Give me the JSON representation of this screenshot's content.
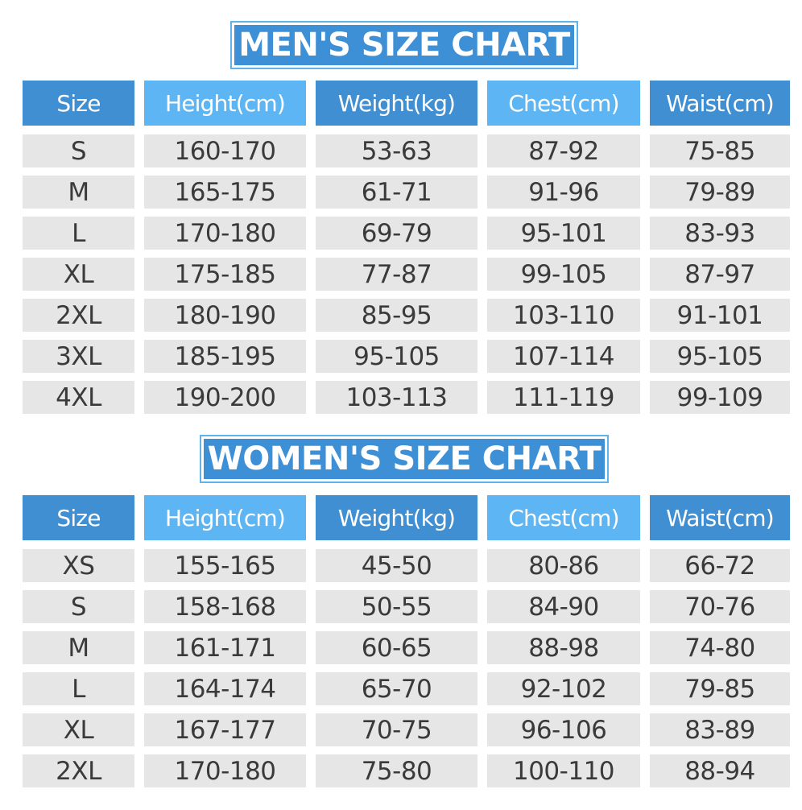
{
  "colors": {
    "header_dark": "#3f8fd2",
    "header_light": "#5db6f3",
    "cell_bg": "#e6e6e6",
    "text": "#3a3a3a",
    "banner_bg": "#3d8fd6"
  },
  "men": {
    "title": "MEN'S SIZE CHART",
    "headers": [
      "Size",
      "Height(cm)",
      "Weight(kg)",
      "Chest(cm)",
      "Waist(cm)"
    ],
    "rows": [
      [
        "S",
        "160-170",
        "53-63",
        "87-92",
        "75-85"
      ],
      [
        "M",
        "165-175",
        "61-71",
        "91-96",
        "79-89"
      ],
      [
        "L",
        "170-180",
        "69-79",
        "95-101",
        "83-93"
      ],
      [
        "XL",
        "175-185",
        "77-87",
        "99-105",
        "87-97"
      ],
      [
        "2XL",
        "180-190",
        "85-95",
        "103-110",
        "91-101"
      ],
      [
        "3XL",
        "185-195",
        "95-105",
        "107-114",
        "95-105"
      ],
      [
        "4XL",
        "190-200",
        "103-113",
        "111-119",
        "99-109"
      ]
    ]
  },
  "women": {
    "title": "WOMEN'S SIZE CHART",
    "headers": [
      "Size",
      "Height(cm)",
      "Weight(kg)",
      "Chest(cm)",
      "Waist(cm)"
    ],
    "rows": [
      [
        "XS",
        "155-165",
        "45-50",
        "80-86",
        "66-72"
      ],
      [
        "S",
        "158-168",
        "50-55",
        "84-90",
        "70-76"
      ],
      [
        "M",
        "161-171",
        "60-65",
        "88-98",
        "74-80"
      ],
      [
        "L",
        "164-174",
        "65-70",
        "92-102",
        "79-85"
      ],
      [
        "XL",
        "167-177",
        "70-75",
        "96-106",
        "83-89"
      ],
      [
        "2XL",
        "170-180",
        "75-80",
        "100-110",
        "88-94"
      ]
    ]
  }
}
